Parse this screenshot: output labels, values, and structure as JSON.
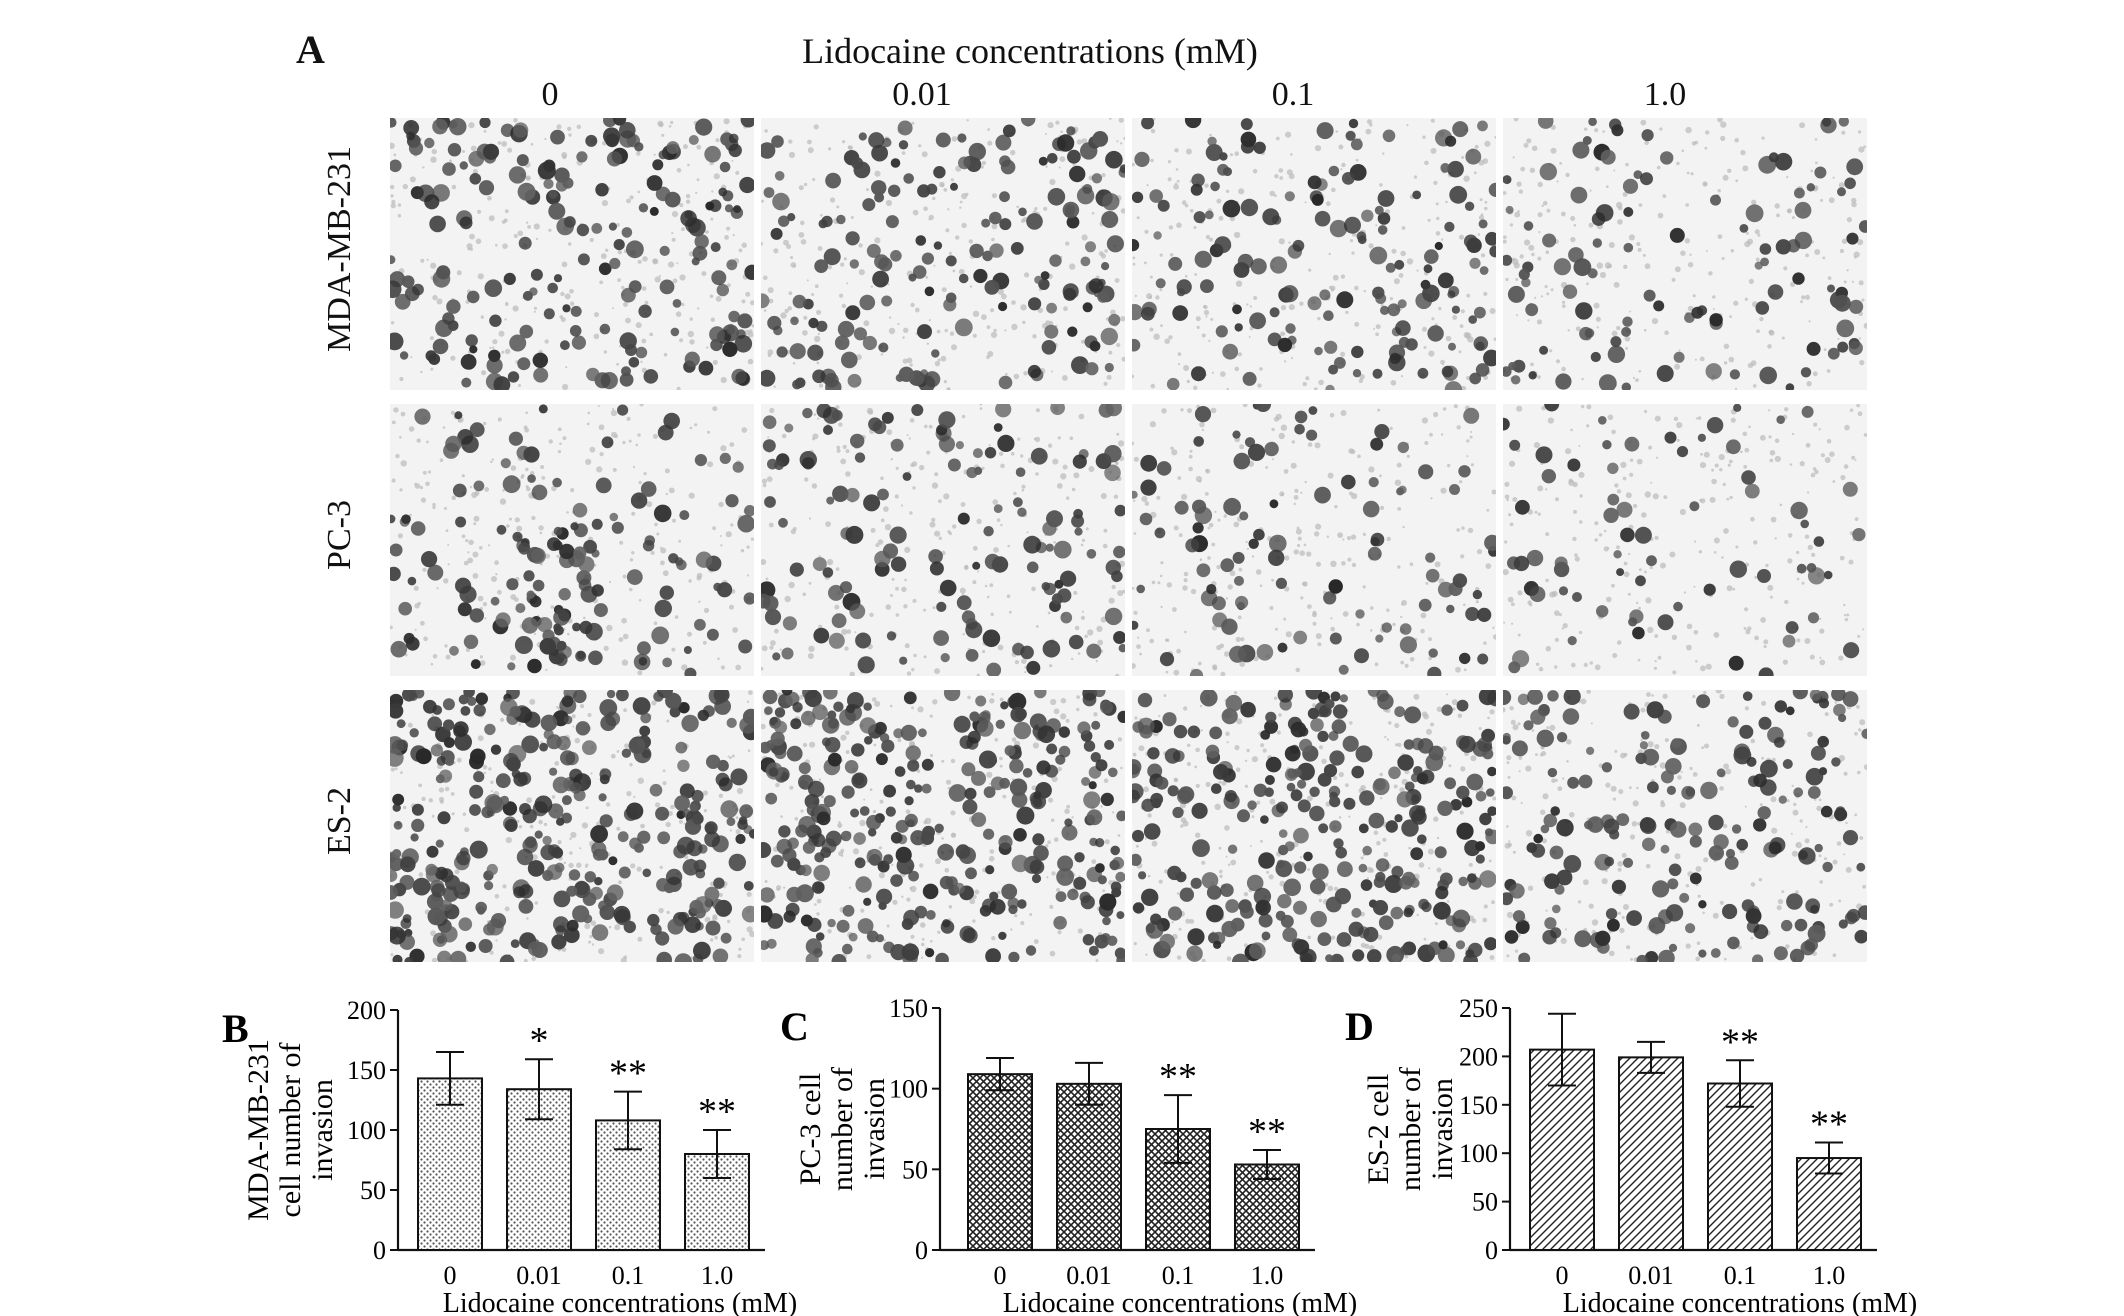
{
  "panel_a": {
    "letter": "A",
    "title": "Lidocaine concentrations (mM)",
    "columns": [
      "0",
      "0.01",
      "0.1",
      "1.0"
    ],
    "rows": [
      "MDA-MB-231",
      "PC-3",
      "ES-2"
    ],
    "relative_cell_density": [
      [
        1.0,
        0.9,
        0.8,
        0.55
      ],
      [
        0.75,
        0.7,
        0.5,
        0.35
      ],
      [
        1.0,
        0.95,
        0.85,
        0.55
      ]
    ]
  },
  "chart_data": [
    {
      "letter": "B",
      "type": "bar",
      "categories": [
        "0",
        "0.01",
        "0.1",
        "1.0"
      ],
      "values": [
        143,
        134,
        108,
        80
      ],
      "errors": [
        22,
        25,
        24,
        20
      ],
      "significance": [
        "",
        "*",
        "**",
        "**"
      ],
      "ylabel_lines": [
        "MDA-MB-231",
        "cell number of",
        "invasion"
      ],
      "xlabel": "Lidocaine concentrations (mM)",
      "ylim": [
        0,
        200
      ],
      "yticks": [
        0,
        50,
        100,
        150,
        200
      ],
      "pattern": "dots",
      "grid": false
    },
    {
      "letter": "C",
      "type": "bar",
      "categories": [
        "0",
        "0.01",
        "0.1",
        "1.0"
      ],
      "values": [
        109,
        103,
        75,
        53
      ],
      "errors": [
        10,
        13,
        21,
        9
      ],
      "significance": [
        "",
        "",
        "**",
        "**"
      ],
      "ylabel_lines": [
        "PC-3 cell",
        "number of",
        "invasion"
      ],
      "xlabel": "Lidocaine concentrations (mM)",
      "ylim": [
        0,
        150
      ],
      "yticks": [
        0,
        50,
        100,
        150
      ],
      "pattern": "crosshatch",
      "grid": false
    },
    {
      "letter": "D",
      "type": "bar",
      "categories": [
        "0",
        "0.01",
        "0.1",
        "1.0"
      ],
      "values": [
        207,
        199,
        172,
        95
      ],
      "errors": [
        37,
        16,
        24,
        16
      ],
      "significance": [
        "",
        "",
        "**",
        "**"
      ],
      "ylabel_lines": [
        "ES-2 cell",
        "number of",
        "invasion"
      ],
      "xlabel": "Lidocaine concentrations (mM)",
      "ylim": [
        0,
        250
      ],
      "yticks": [
        0,
        50,
        100,
        150,
        200,
        250
      ],
      "pattern": "diagonal",
      "grid": false
    }
  ]
}
